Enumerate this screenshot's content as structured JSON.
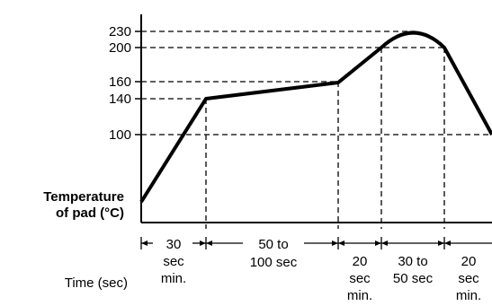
{
  "y_axis_label": [
    "Temperature",
    "of pad (°C)"
  ],
  "x_axis_label": "Time (sec)",
  "y_ticks": [
    230,
    200,
    160,
    140,
    100
  ],
  "segments": [
    {
      "lines": [
        "30",
        "sec",
        "min."
      ]
    },
    {
      "lines": [
        "50 to",
        "100 sec"
      ]
    },
    {
      "lines": [
        "20",
        "sec",
        "min."
      ]
    },
    {
      "lines": [
        "30 to",
        "50 sec"
      ]
    },
    {
      "lines": [
        "20",
        "sec",
        "min."
      ]
    }
  ],
  "colors": {
    "line": "#000000",
    "background": "#ffffff"
  }
}
